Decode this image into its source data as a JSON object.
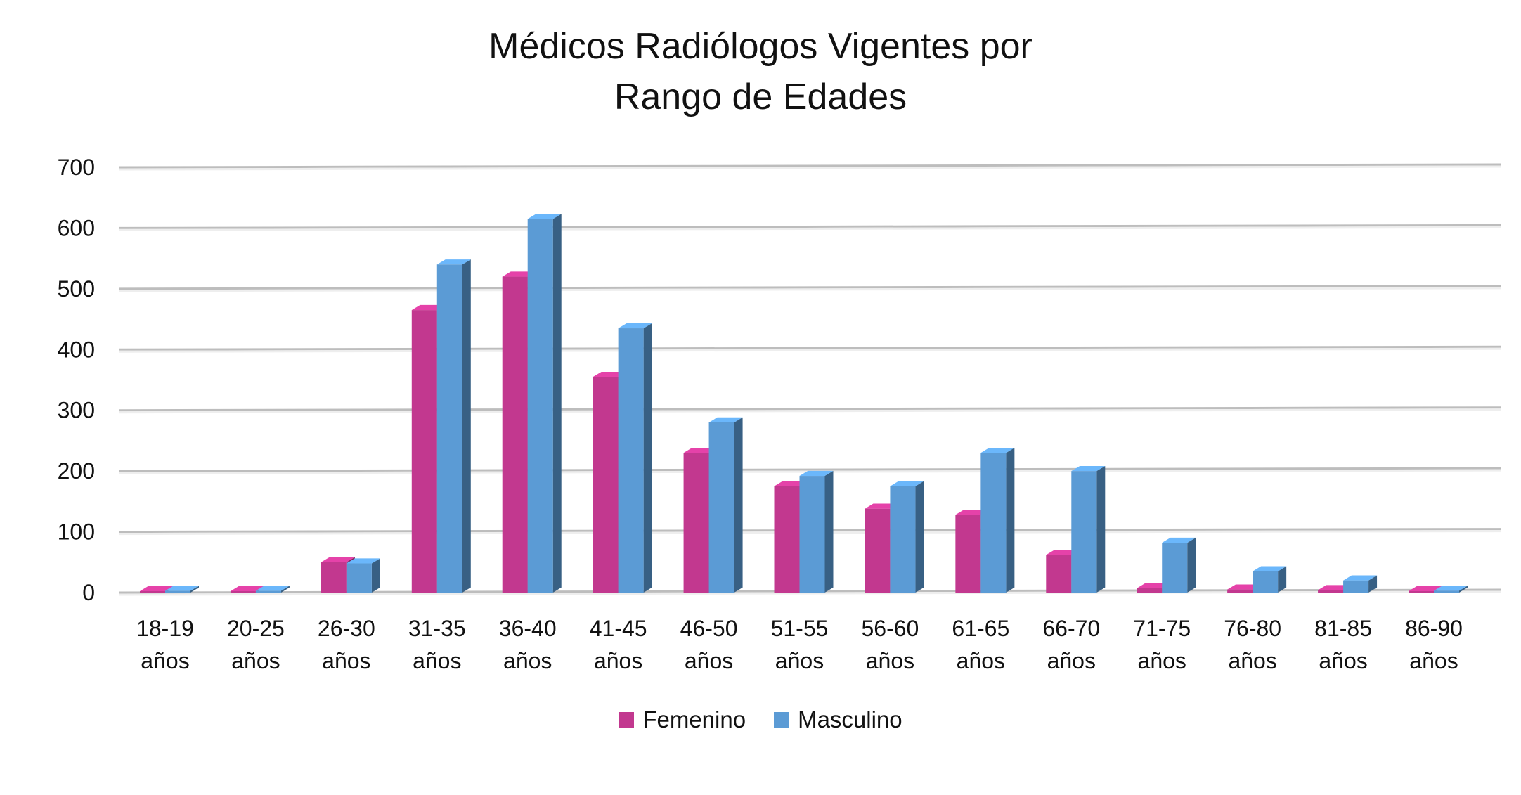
{
  "chart_data": {
    "type": "bar",
    "title": [
      "Médicos Radiólogos Vigentes por",
      "Rango de Edades"
    ],
    "categories": [
      [
        "18-19",
        "años"
      ],
      [
        "20-25",
        "años"
      ],
      [
        "26-30",
        "años"
      ],
      [
        "31-35",
        "años"
      ],
      [
        "36-40",
        "años"
      ],
      [
        "41-45",
        "años"
      ],
      [
        "46-50",
        "años"
      ],
      [
        "51-55",
        "años"
      ],
      [
        "56-60",
        "años"
      ],
      [
        "61-65",
        "años"
      ],
      [
        "66-70",
        "años"
      ],
      [
        "71-75",
        "años"
      ],
      [
        "76-80",
        "años"
      ],
      [
        "81-85",
        "años"
      ],
      [
        "86-90",
        "años"
      ]
    ],
    "series": [
      {
        "name": "Femenino",
        "color": "#c2388f",
        "values": [
          2,
          2,
          50,
          465,
          520,
          355,
          230,
          175,
          138,
          128,
          62,
          7,
          5,
          4,
          2
        ]
      },
      {
        "name": "Masculino",
        "color": "#5b9bd5",
        "values": [
          3,
          3,
          48,
          540,
          615,
          435,
          280,
          192,
          175,
          230,
          200,
          82,
          35,
          20,
          3
        ]
      }
    ],
    "y_ticks": [
      "0",
      "100",
      "200",
      "300",
      "400",
      "500",
      "600",
      "700"
    ],
    "ylim": [
      0,
      700
    ],
    "grid": true,
    "legend_position": "bottom"
  }
}
